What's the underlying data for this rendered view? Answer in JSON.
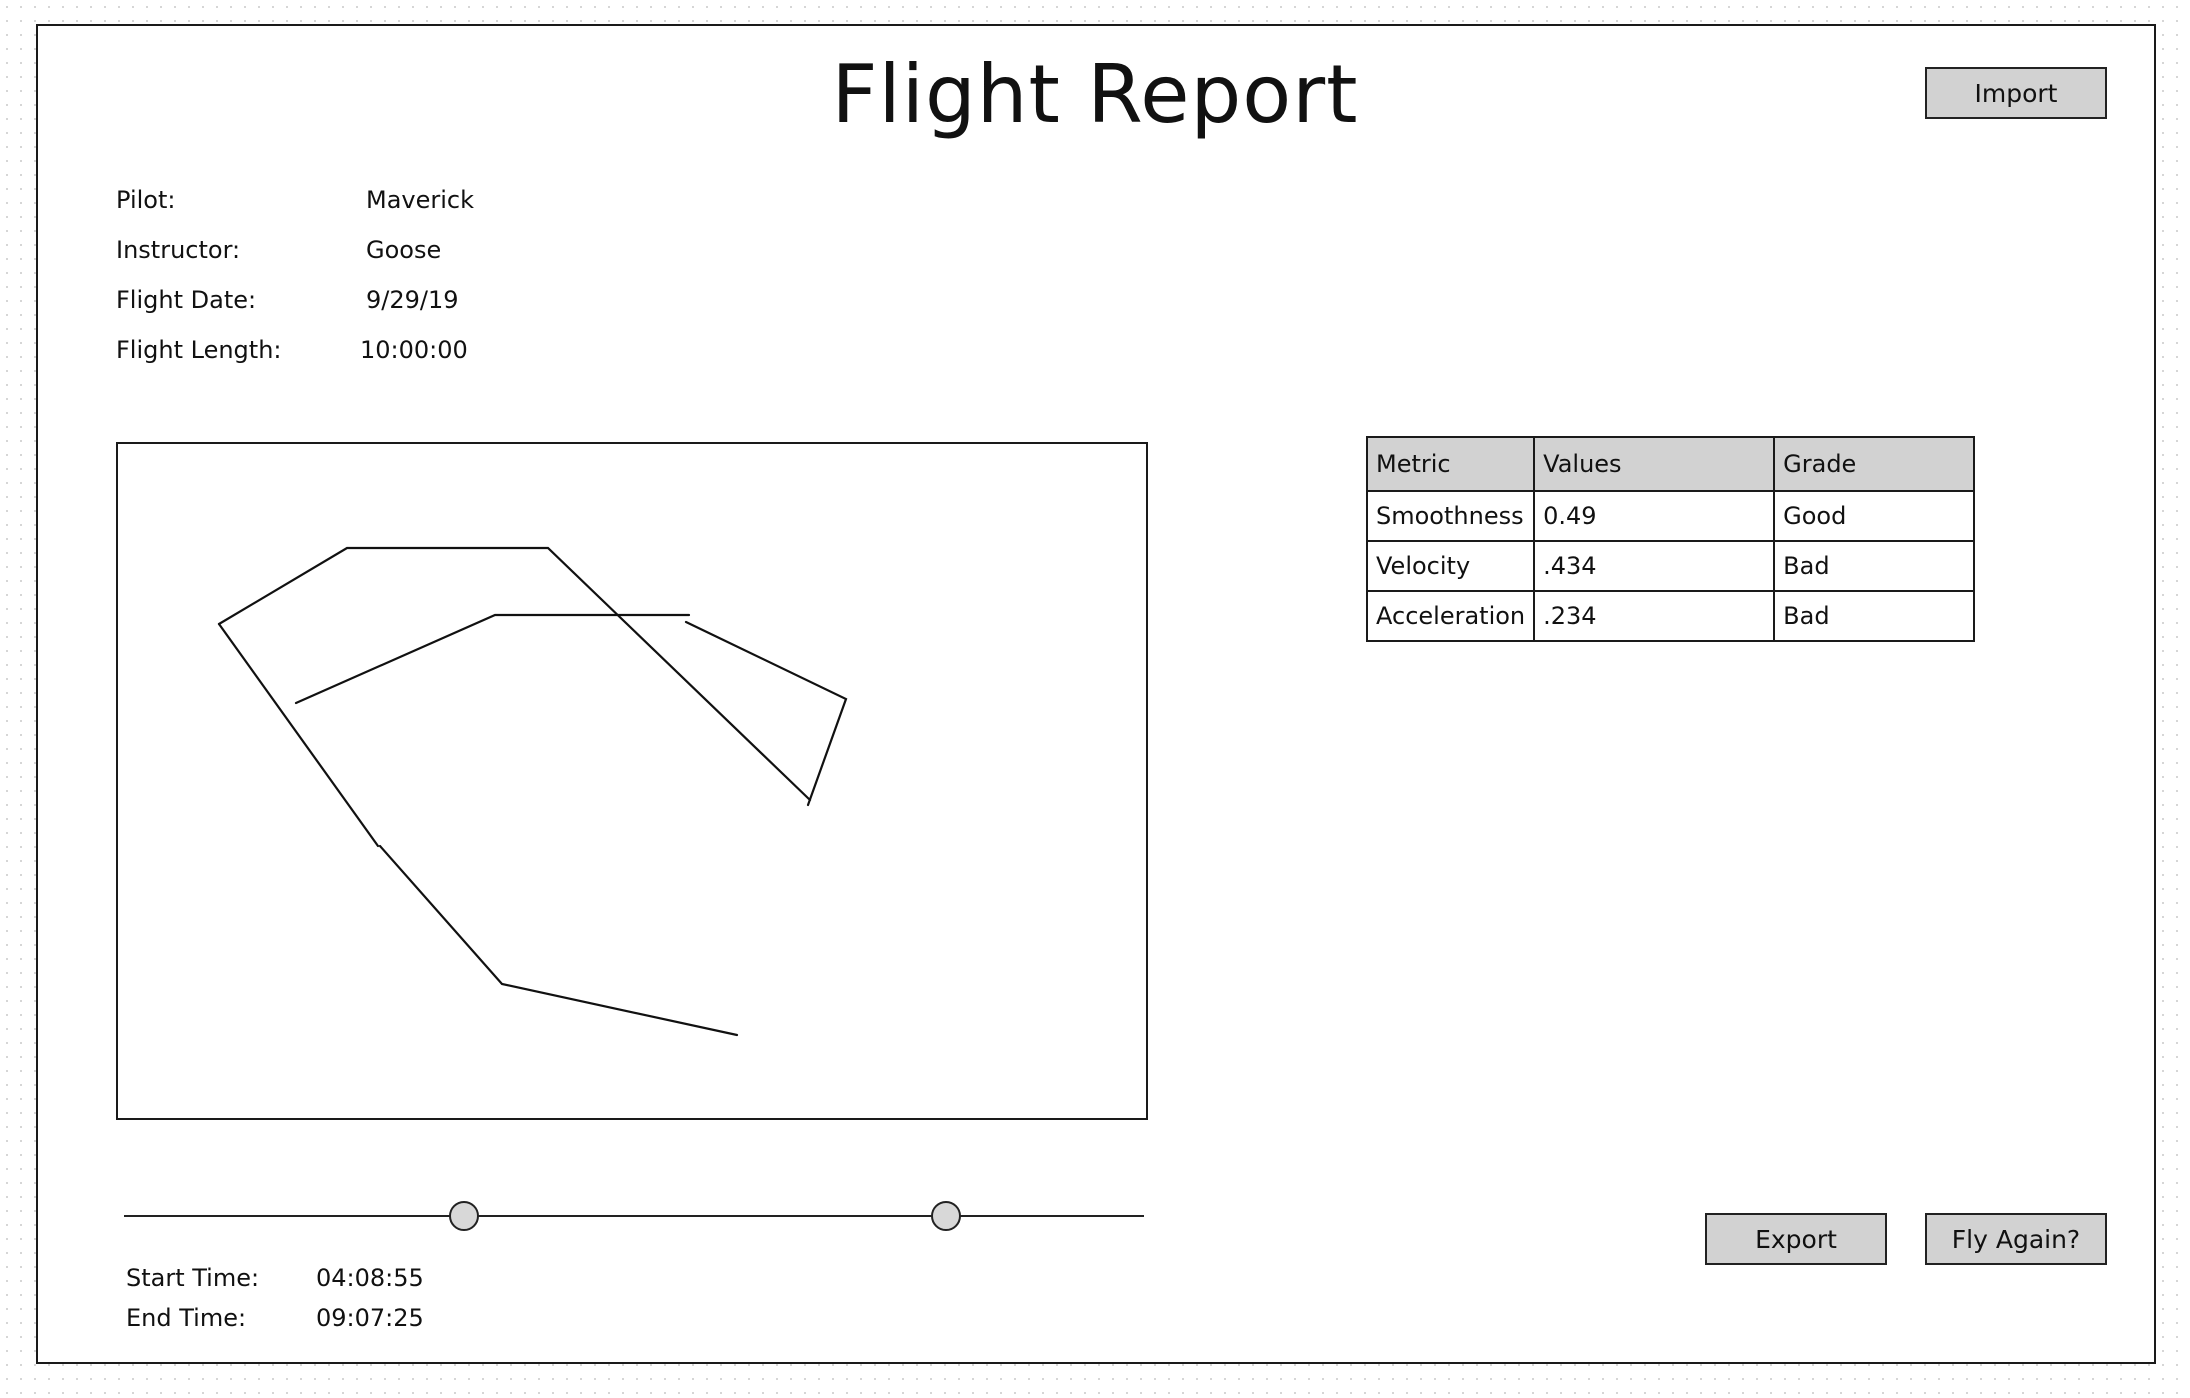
{
  "page": {
    "title": "Flight Report"
  },
  "toolbar": {
    "import_label": "Import",
    "export_label": "Export",
    "fly_again_label": "Fly Again?"
  },
  "info": {
    "pilot_label": "Pilot:",
    "pilot": "Maverick",
    "instructor_label": "Instructor:",
    "instructor": "Goose",
    "date_label": "Flight Date:",
    "date": "9/29/19",
    "length_label": "Flight Length:",
    "length": "10:00:00"
  },
  "metrics": {
    "headers": [
      "Metric",
      "Values",
      "Grade"
    ],
    "rows": [
      [
        "Smoothness",
        "0.49",
        "Good"
      ],
      [
        "Velocity",
        ".434",
        "Bad"
      ],
      [
        "Acceleration",
        ".234",
        "Bad"
      ]
    ]
  },
  "timeline": {
    "start_label": "Start Time:",
    "start": "04:08:55",
    "end_label": "End Time:",
    "end": "09:07:25",
    "range_start_fraction": 0.333,
    "range_end_fraction": 0.806
  },
  "colors": {
    "button_bg": "#d2d2d2",
    "header_bg": "#d2d2d2",
    "border": "#1a1a1a"
  }
}
